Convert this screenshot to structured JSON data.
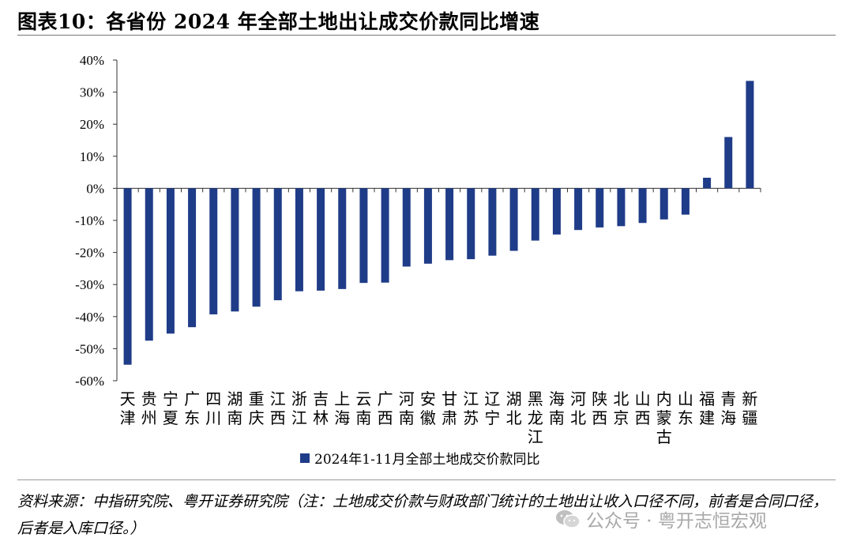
{
  "header": {
    "title": "图表10：各省份 2024 年全部土地出让成交价款同比增速"
  },
  "chart_data": {
    "type": "bar",
    "categories": [
      "天津",
      "贵州",
      "宁夏",
      "广东",
      "四川",
      "湖南",
      "重庆",
      "江西",
      "浙江",
      "吉林",
      "上海",
      "云南",
      "广西",
      "河南",
      "安徽",
      "甘肃",
      "江苏",
      "辽宁",
      "湖北",
      "黑龙江",
      "海南",
      "河北",
      "陕西",
      "北京",
      "山西",
      "内蒙古",
      "山东",
      "福建",
      "青海",
      "新疆"
    ],
    "series": [
      {
        "name": "2024年1-11月全部土地成交价款同比",
        "values": [
          -55.0,
          -47.5,
          -45.3,
          -43.3,
          -39.3,
          -38.4,
          -36.9,
          -34.9,
          -32.1,
          -31.9,
          -31.4,
          -29.5,
          -29.4,
          -24.4,
          -23.5,
          -22.4,
          -22.1,
          -21.0,
          -19.5,
          -16.3,
          -14.4,
          -13.0,
          -12.2,
          -11.8,
          -10.8,
          -9.7,
          -8.2,
          3.3,
          16.0,
          33.5
        ],
        "color": "#1F3C88"
      }
    ],
    "ylim": [
      -60,
      40
    ],
    "yticks": [
      "-60%",
      "-50%",
      "-40%",
      "-30%",
      "-20%",
      "-10%",
      "0%",
      "10%",
      "20%",
      "30%",
      "40%"
    ],
    "legend_position": "bottom",
    "grid": false
  },
  "footer": {
    "note": "资料来源：中指研究院、粤开证券研究院（注：土地成交价款与财政部门统计的土地出让收入口径不同，前者是合同口径，后者是入库口径。）",
    "watermark": "公众号 · 粤开志恒宏观"
  }
}
